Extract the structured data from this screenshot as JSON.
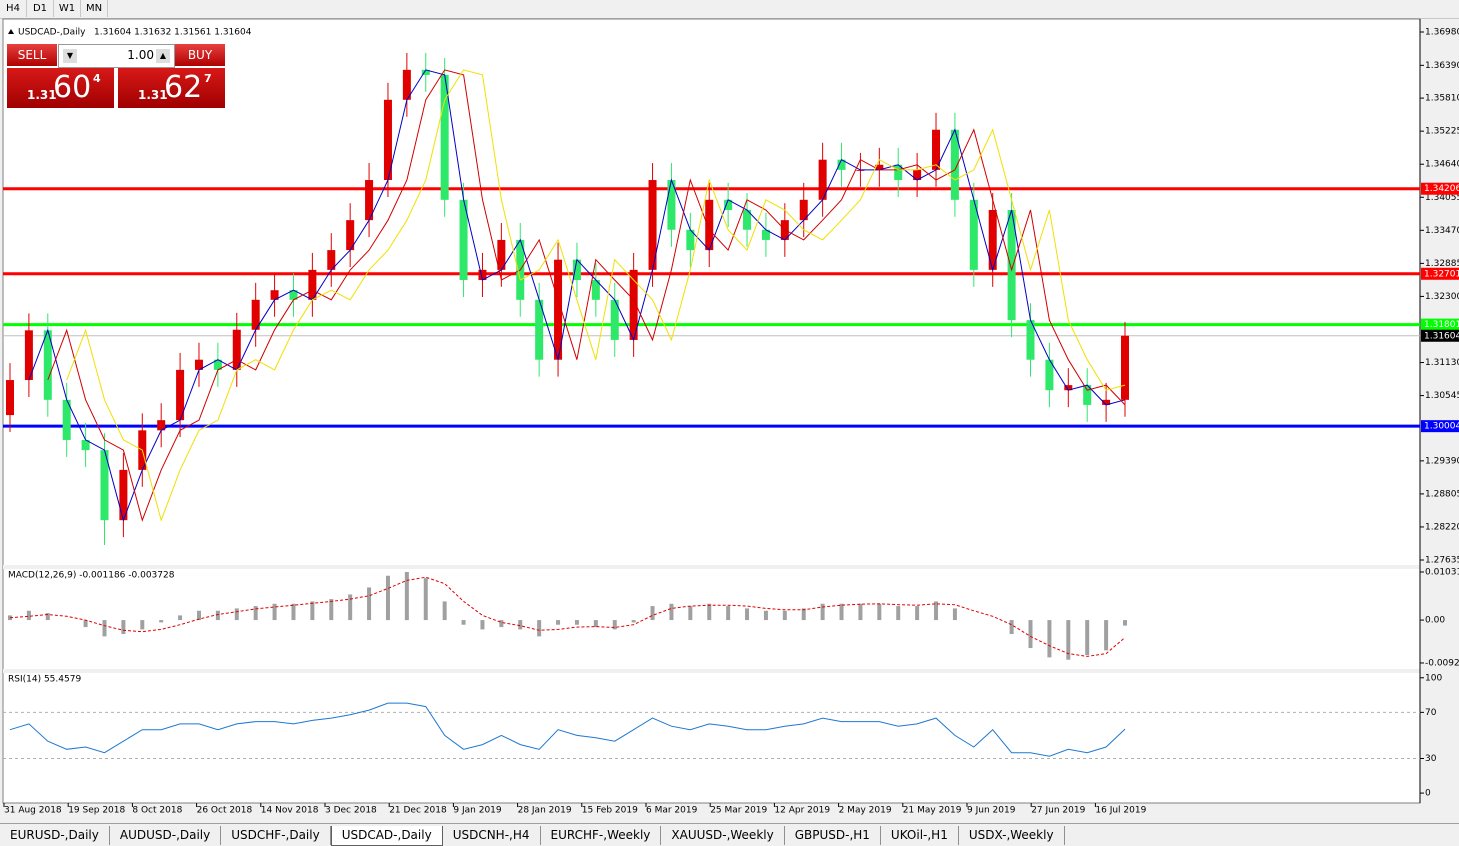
{
  "toolbar": [
    "H4",
    "D1",
    "W1",
    "MN"
  ],
  "trade_panel": {
    "sell": "SELL",
    "buy": "BUY",
    "lot": "1.00",
    "sell_price": {
      "big": "1.31",
      "main": "60",
      "sup": "4"
    },
    "buy_price": {
      "big": "1.31",
      "main": "62",
      "sup": "7"
    }
  },
  "tabs": [
    "EURUSD-,Daily",
    "AUDUSD-,Daily",
    "USDCHF-,Daily",
    "USDCAD-,Daily",
    "USDCNH-,H4",
    "EURCHF-,Weekly",
    "XAUUSD-,Weekly",
    "GBPUSD-,H1",
    "UKOil-,H1",
    "USDX-,Weekly"
  ],
  "active_tab": 3,
  "chart_data": {
    "type": "candlestick",
    "symbol": "USDCAD-,Daily",
    "quote": "1.31604 1.31632 1.31561 1.31604",
    "up_color": "#e00000",
    "down_color": "#2ee86a",
    "open": [
      1.302,
      1.3082,
      1.317,
      1.3047,
      1.2976,
      1.2958,
      1.2834,
      1.2923,
      1.2993,
      1.3011,
      1.31,
      1.3118,
      1.31,
      1.3171,
      1.3224,
      1.3241,
      1.3224,
      1.3277,
      1.3312,
      1.3365,
      1.3436,
      1.3578,
      1.3631,
      1.3622,
      1.3401,
      1.3259,
      1.3277,
      1.333,
      1.3224,
      1.3118,
      1.3295,
      1.3259,
      1.3224,
      1.3153,
      1.3277,
      1.3436,
      1.3348,
      1.3312,
      1.3401,
      1.3383,
      1.3348,
      1.333,
      1.3365,
      1.3401,
      1.3472,
      1.3454,
      1.3454,
      1.3463,
      1.3436,
      1.3454,
      1.3525,
      1.3401,
      1.3277,
      1.3383,
      1.3188,
      1.3118,
      1.3064,
      1.3073,
      1.3038,
      1.3047
    ],
    "high": [
      1.3112,
      1.32,
      1.32,
      1.3077,
      1.3006,
      1.2988,
      1.2953,
      1.3023,
      1.3041,
      1.313,
      1.3148,
      1.3148,
      1.3201,
      1.3254,
      1.3271,
      1.3271,
      1.3307,
      1.3342,
      1.3395,
      1.3466,
      1.3608,
      1.3661,
      1.3661,
      1.3652,
      1.3431,
      1.3307,
      1.336,
      1.336,
      1.3254,
      1.3325,
      1.3325,
      1.3289,
      1.3254,
      1.3307,
      1.3466,
      1.3466,
      1.3378,
      1.3431,
      1.3431,
      1.3413,
      1.3378,
      1.3395,
      1.3431,
      1.3502,
      1.3502,
      1.3484,
      1.3493,
      1.3493,
      1.3484,
      1.3555,
      1.3555,
      1.3431,
      1.3413,
      1.3413,
      1.3218,
      1.3148,
      1.3103,
      1.3103,
      1.3077,
      1.3185
    ],
    "low": [
      1.299,
      1.3052,
      1.3017,
      1.2946,
      1.2928,
      1.279,
      1.2804,
      1.2893,
      1.2963,
      1.2981,
      1.307,
      1.307,
      1.307,
      1.3141,
      1.3194,
      1.3194,
      1.3194,
      1.3247,
      1.3282,
      1.3335,
      1.3406,
      1.3548,
      1.3592,
      1.3371,
      1.3229,
      1.3229,
      1.3247,
      1.3194,
      1.3088,
      1.3088,
      1.3229,
      1.3194,
      1.3123,
      1.3123,
      1.3247,
      1.3318,
      1.3282,
      1.3282,
      1.3353,
      1.3318,
      1.33,
      1.33,
      1.3335,
      1.3371,
      1.3424,
      1.3424,
      1.3424,
      1.3406,
      1.3406,
      1.3424,
      1.3371,
      1.3247,
      1.3247,
      1.3158,
      1.3088,
      1.3034,
      1.3034,
      1.3008,
      1.3008,
      1.3017
    ],
    "close": [
      1.3082,
      1.317,
      1.3047,
      1.2976,
      1.2958,
      1.2834,
      1.2923,
      1.2993,
      1.3011,
      1.31,
      1.3118,
      1.31,
      1.3171,
      1.3224,
      1.3241,
      1.3224,
      1.3277,
      1.3312,
      1.3365,
      1.3436,
      1.3578,
      1.3631,
      1.3622,
      1.3401,
      1.3259,
      1.3277,
      1.333,
      1.3224,
      1.3118,
      1.3295,
      1.3259,
      1.3224,
      1.3153,
      1.3277,
      1.3436,
      1.3348,
      1.3312,
      1.3401,
      1.3383,
      1.3348,
      1.333,
      1.3365,
      1.3401,
      1.3472,
      1.3454,
      1.3454,
      1.3463,
      1.3436,
      1.3454,
      1.3525,
      1.3401,
      1.3277,
      1.3383,
      1.3188,
      1.3118,
      1.3064,
      1.3073,
      1.3038,
      1.3047,
      1.31604
    ],
    "ma": [
      {
        "color": "#0000c8",
        "values": [
          null,
          1.3082,
          1.317,
          1.3047,
          1.2976,
          1.2958,
          1.2834,
          1.2923,
          1.2993,
          1.3011,
          1.31,
          1.3118,
          1.31,
          1.3171,
          1.3224,
          1.3241,
          1.3224,
          1.3277,
          1.3312,
          1.3365,
          1.3436,
          1.3578,
          1.3631,
          1.3622,
          1.3401,
          1.3259,
          1.3277,
          1.333,
          1.3224,
          1.3118,
          1.3295,
          1.3259,
          1.3224,
          1.3153,
          1.3277,
          1.3436,
          1.3348,
          1.3312,
          1.3401,
          1.3383,
          1.3348,
          1.333,
          1.3365,
          1.3401,
          1.3472,
          1.3454,
          1.3454,
          1.3463,
          1.3436,
          1.3454,
          1.3525,
          1.3401,
          1.3277,
          1.3383,
          1.3188,
          1.3118,
          1.3064,
          1.3073,
          1.3038,
          1.3047
        ]
      },
      {
        "color": "#d00000",
        "values": [
          null,
          null,
          1.3082,
          1.317,
          1.3047,
          1.2976,
          1.2958,
          1.2834,
          1.2923,
          1.2993,
          1.3011,
          1.31,
          1.3118,
          1.31,
          1.3171,
          1.3224,
          1.3241,
          1.3224,
          1.3277,
          1.3312,
          1.3365,
          1.3436,
          1.3578,
          1.3631,
          1.3622,
          1.3401,
          1.3259,
          1.3277,
          1.333,
          1.3224,
          1.3118,
          1.3295,
          1.3259,
          1.3224,
          1.3153,
          1.3277,
          1.3436,
          1.3348,
          1.3312,
          1.3401,
          1.3383,
          1.3348,
          1.333,
          1.3365,
          1.3401,
          1.3472,
          1.3454,
          1.3454,
          1.3463,
          1.3436,
          1.3454,
          1.3525,
          1.3401,
          1.3277,
          1.3383,
          1.3188,
          1.3118,
          1.3064,
          1.3073,
          1.3038
        ]
      },
      {
        "color": "#f0e000",
        "values": [
          null,
          null,
          null,
          1.3082,
          1.317,
          1.3047,
          1.2976,
          1.2958,
          1.2834,
          1.2923,
          1.2993,
          1.3011,
          1.31,
          1.3118,
          1.31,
          1.3171,
          1.3224,
          1.3241,
          1.3224,
          1.3277,
          1.3312,
          1.3365,
          1.3436,
          1.3578,
          1.3631,
          1.3622,
          1.3401,
          1.3259,
          1.3277,
          1.333,
          1.3224,
          1.3118,
          1.3295,
          1.3259,
          1.3224,
          1.3153,
          1.3277,
          1.3436,
          1.3348,
          1.3312,
          1.3401,
          1.3383,
          1.3348,
          1.333,
          1.3365,
          1.3401,
          1.3472,
          1.3454,
          1.3454,
          1.3463,
          1.3436,
          1.3454,
          1.3525,
          1.3401,
          1.3277,
          1.3383,
          1.3188,
          1.3118,
          1.3064,
          1.3073
        ]
      }
    ],
    "ylim": [
      1.27582,
      1.37157
    ],
    "yticks": [
      {
        "value": 1.3698,
        "label": "1.36980"
      },
      {
        "value": 1.3639,
        "label": "1.36390"
      },
      {
        "value": 1.3581,
        "label": "1.35810"
      },
      1.35225,
      {
        "value": 1.3464,
        "label": "1.34640"
      },
      1.34055,
      {
        "value": 1.3347,
        "label": "1.33470"
      },
      1.32885,
      {
        "value": 1.323,
        "label": "1.32300"
      },
      {
        "value": 1.3113,
        "label": "1.31130"
      },
      1.30545,
      {
        "value": 1.2939,
        "label": "1.29390"
      },
      1.28805,
      {
        "value": 1.2822,
        "label": "1.28220"
      },
      1.27635
    ],
    "hlines": [
      {
        "value": 1.34206,
        "color": "#ff0000",
        "tag_color": "#ff0000"
      },
      {
        "value": 1.32701,
        "color": "#ff0000",
        "tag_color": "#ff0000"
      },
      {
        "value": 1.31801,
        "color": "#00ff00",
        "tag_color": "#00ff00"
      },
      {
        "value": 1.30004,
        "color": "#0000ff",
        "tag_color": "#0000ff"
      },
      {
        "value": 1.31604,
        "color": "#c0c0c0",
        "tag_color": "#000000"
      }
    ],
    "x_labels": [
      "31 Aug 2018",
      "19 Sep 2018",
      "8 Oct 2018",
      "26 Oct 2018",
      "14 Nov 2018",
      "3 Dec 2018",
      "21 Dec 2018",
      "9 Jan 2019",
      "28 Jan 2019",
      "15 Feb 2019",
      "6 Mar 2019",
      "25 Mar 2019",
      "12 Apr 2019",
      "2 May 2019",
      "21 May 2019",
      "9 Jun 2019",
      "27 Jun 2019",
      "16 Jul 2019"
    ],
    "macd": {
      "label": "MACD(12,26,9) -0.001186 -0.003728",
      "histogram": [
        0.001,
        0.002,
        0.0015,
        0.0,
        -0.0015,
        -0.0035,
        -0.003,
        -0.002,
        -0.0005,
        0.001,
        0.002,
        0.002,
        0.0025,
        0.003,
        0.0035,
        0.0035,
        0.004,
        0.0045,
        0.0055,
        0.007,
        0.0095,
        0.0103,
        0.009,
        0.004,
        -0.001,
        -0.002,
        -0.0015,
        -0.002,
        -0.0035,
        -0.001,
        -0.001,
        -0.0015,
        -0.002,
        -0.0005,
        0.003,
        0.0035,
        0.003,
        0.0035,
        0.003,
        0.0025,
        0.002,
        0.002,
        0.0025,
        0.0035,
        0.0035,
        0.0035,
        0.0035,
        0.003,
        0.003,
        0.004,
        0.0025,
        0.0,
        0.0,
        -0.003,
        -0.006,
        -0.008,
        -0.0085,
        -0.0075,
        -0.0065,
        -0.001186
      ],
      "signal": [
        0.0005,
        0.0008,
        0.0012,
        0.0008,
        0.0,
        -0.0012,
        -0.0022,
        -0.0025,
        -0.002,
        -0.001,
        0.0002,
        0.0012,
        0.0018,
        0.0024,
        0.0028,
        0.0032,
        0.0036,
        0.004,
        0.0045,
        0.0052,
        0.0068,
        0.0085,
        0.0092,
        0.0078,
        0.004,
        0.001,
        -0.0005,
        -0.0012,
        -0.0022,
        -0.002,
        -0.0015,
        -0.0014,
        -0.0016,
        -0.001,
        0.001,
        0.0025,
        0.003,
        0.0032,
        0.0032,
        0.003,
        0.0025,
        0.0022,
        0.0022,
        0.0028,
        0.0032,
        0.0034,
        0.0035,
        0.0033,
        0.0032,
        0.0035,
        0.0033,
        0.002,
        0.0008,
        -0.001,
        -0.0035,
        -0.0055,
        -0.0072,
        -0.0078,
        -0.0072,
        -0.003728
      ],
      "ylim": [
        -0.01028,
        0.01117
      ],
      "yticks": [
        0.010311,
        {
          "value": 0,
          "label": "0.00"
        },
        {
          "value": -0.0092,
          "label": "-0.00920"
        }
      ]
    },
    "rsi": {
      "label": "RSI(14) 55.4579",
      "color": "#1e78d2",
      "values": [
        55,
        60,
        45,
        38,
        40,
        35,
        45,
        55,
        55,
        60,
        60,
        55,
        60,
        62,
        62,
        60,
        63,
        65,
        68,
        72,
        78,
        78,
        75,
        50,
        38,
        42,
        50,
        42,
        38,
        55,
        50,
        48,
        45,
        55,
        65,
        58,
        55,
        60,
        58,
        55,
        55,
        58,
        60,
        65,
        62,
        62,
        62,
        58,
        60,
        65,
        50,
        40,
        55,
        35,
        35,
        32,
        38,
        35,
        40,
        55.4579
      ],
      "ylim": [
        -6,
        105
      ],
      "yticks": [
        100,
        70,
        30,
        0
      ],
      "levels": [
        70,
        30
      ]
    }
  }
}
